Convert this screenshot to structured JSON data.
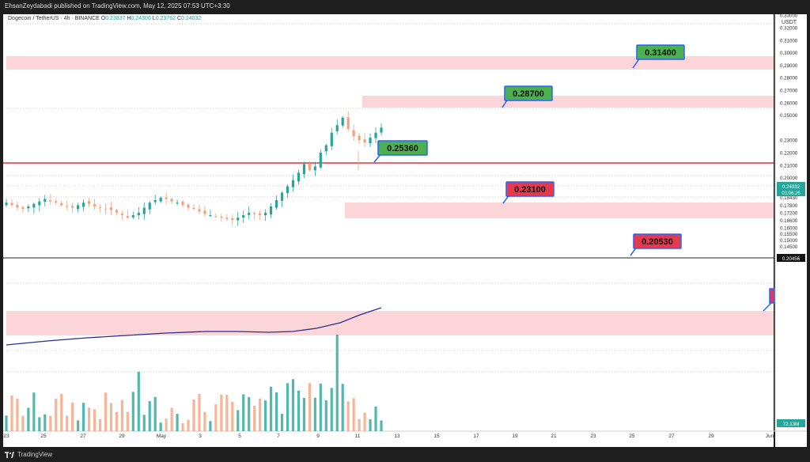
{
  "publisher_line": "EhsanZeydabadi published on TradingView.com, May 12, 2025 07:53 UTC+3:30",
  "brand": "TradingView",
  "legend": {
    "symbol": "Dogecoin / TetherUS · 4h · BINANCE",
    "open_label": "O",
    "open": "0.23837",
    "high_label": "H",
    "high": "0.24306",
    "low_label": "L",
    "low": "0.23762",
    "close_label": "C",
    "close": "0.24032"
  },
  "colors": {
    "up": "#26a69a",
    "down": "#f2a27c",
    "zone": "#fcd5d9",
    "resistance_line": "#e0303c",
    "ma_line": "#2b2f8f",
    "green_label": "#4caf50",
    "red_label": "#e53950",
    "accent_blue": "#2962ff"
  },
  "chart_data": {
    "type": "candlestick",
    "quote_currency": "USDT",
    "ylim": [
      0.141,
      0.339
    ],
    "y_ticks": [
      "0.33000",
      "0.32000",
      "0.31000",
      "0.30000",
      "0.29000",
      "0.28000",
      "0.27000",
      "0.26000",
      "0.25000",
      "0.23000",
      "0.22000",
      "0.21000",
      "0.20000",
      "0.19000",
      "0.18430",
      "0.17800",
      "0.17200",
      "0.16600",
      "0.16000",
      "0.15500",
      "0.15000",
      "0.14500"
    ],
    "x_ticks": [
      "23",
      "25",
      "27",
      "29",
      "May",
      "3",
      "5",
      "7",
      "9",
      "11",
      "13",
      "15",
      "17",
      "19",
      "21",
      "23",
      "25",
      "27",
      "29",
      "Jun"
    ],
    "current_price": "0.24032",
    "current_countdown": "03:06:26",
    "line_price": "0.20456",
    "volume_label": "72.13M",
    "close_path": [
      0.18,
      0.178,
      0.176,
      0.175,
      0.177,
      0.179,
      0.181,
      0.183,
      0.181,
      0.18,
      0.178,
      0.177,
      0.176,
      0.178,
      0.18,
      0.179,
      0.177,
      0.176,
      0.175,
      0.174,
      0.172,
      0.17,
      0.168,
      0.17,
      0.172,
      0.176,
      0.18,
      0.182,
      0.184,
      0.183,
      0.181,
      0.18,
      0.178,
      0.176,
      0.175,
      0.173,
      0.171,
      0.17,
      0.169,
      0.168,
      0.167,
      0.166,
      0.168,
      0.17,
      0.172,
      0.171,
      0.17,
      0.172,
      0.177,
      0.182,
      0.188,
      0.193,
      0.198,
      0.204,
      0.211,
      0.206,
      0.209,
      0.22,
      0.226,
      0.236,
      0.242,
      0.248,
      0.239,
      0.233,
      0.23,
      0.228,
      0.232,
      0.236,
      0.24
    ],
    "levels": [
      {
        "label": "0.31400"
      },
      {
        "label": "0.28700"
      },
      {
        "label": "0.25360"
      },
      {
        "label": "0.23100"
      },
      {
        "label": "0.20530"
      }
    ]
  }
}
